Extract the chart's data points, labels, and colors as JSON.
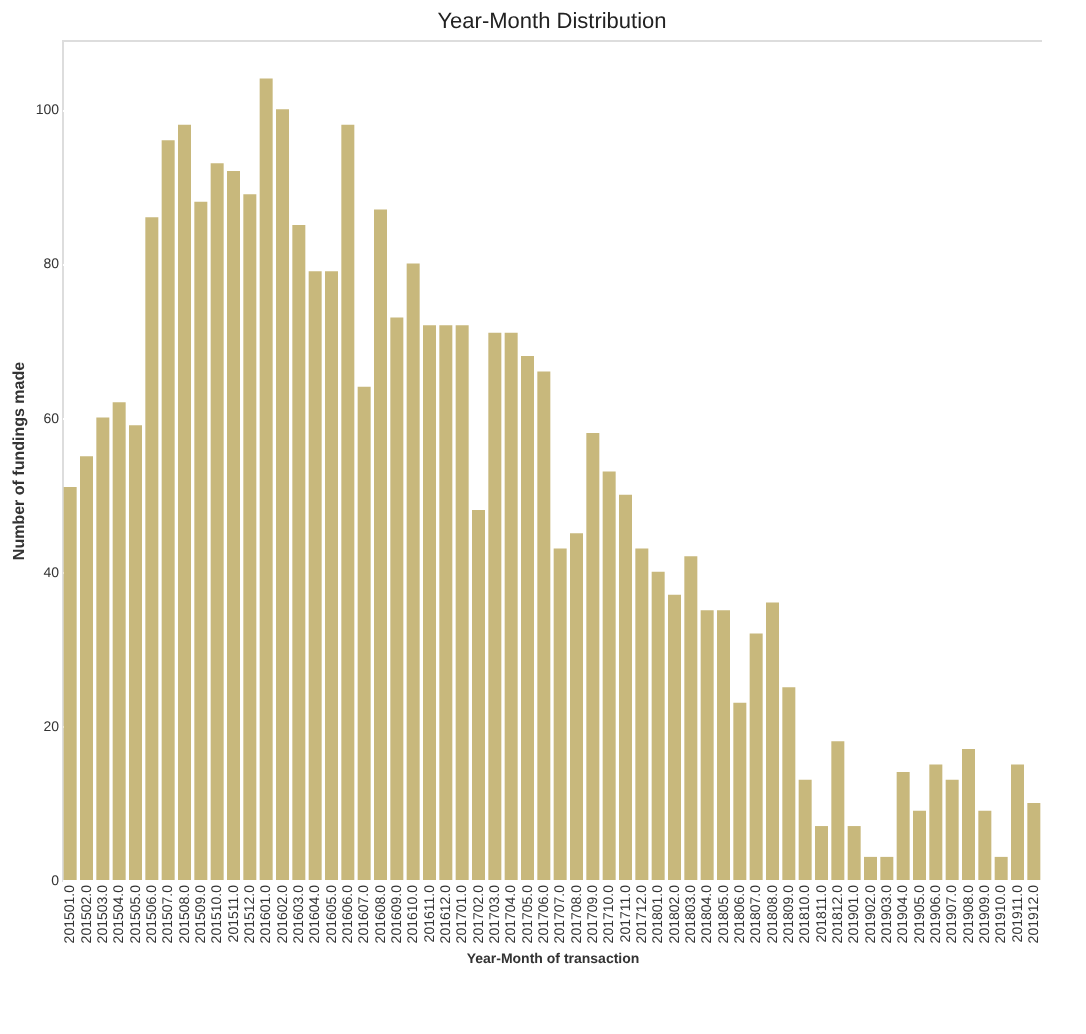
{
  "chart_data": {
    "type": "bar",
    "title": "Year-Month Distribution",
    "xlabel": "Year-Month of transaction",
    "ylabel": "Number of fundings made",
    "categories": [
      "201501.0",
      "201502.0",
      "201503.0",
      "201504.0",
      "201505.0",
      "201506.0",
      "201507.0",
      "201508.0",
      "201509.0",
      "201510.0",
      "201511.0",
      "201512.0",
      "201601.0",
      "201602.0",
      "201603.0",
      "201604.0",
      "201605.0",
      "201606.0",
      "201607.0",
      "201608.0",
      "201609.0",
      "201610.0",
      "201611.0",
      "201612.0",
      "201701.0",
      "201702.0",
      "201703.0",
      "201704.0",
      "201705.0",
      "201706.0",
      "201707.0",
      "201708.0",
      "201709.0",
      "201710.0",
      "201711.0",
      "201712.0",
      "201801.0",
      "201802.0",
      "201803.0",
      "201804.0",
      "201805.0",
      "201806.0",
      "201807.0",
      "201808.0",
      "201809.0",
      "201810.0",
      "201811.0",
      "201812.0",
      "201901.0",
      "201902.0",
      "201903.0",
      "201904.0",
      "201905.0",
      "201906.0",
      "201907.0",
      "201908.0",
      "201909.0",
      "201910.0",
      "201911.0",
      "201912.0"
    ],
    "values": [
      51,
      55,
      60,
      62,
      59,
      86,
      96,
      98,
      88,
      93,
      92,
      89,
      104,
      100,
      85,
      79,
      79,
      98,
      64,
      87,
      73,
      80,
      72,
      72,
      72,
      48,
      71,
      71,
      68,
      66,
      43,
      45,
      58,
      53,
      50,
      43,
      40,
      37,
      42,
      35,
      35,
      23,
      32,
      36,
      25,
      13,
      7,
      18,
      7,
      3,
      3,
      14,
      9,
      15,
      13,
      17,
      9,
      3,
      15,
      10
    ],
    "color": "#c8b87c",
    "ylim": [
      0,
      109
    ],
    "yticks": [
      0,
      20,
      40,
      60,
      80,
      100
    ],
    "grid": "y"
  }
}
